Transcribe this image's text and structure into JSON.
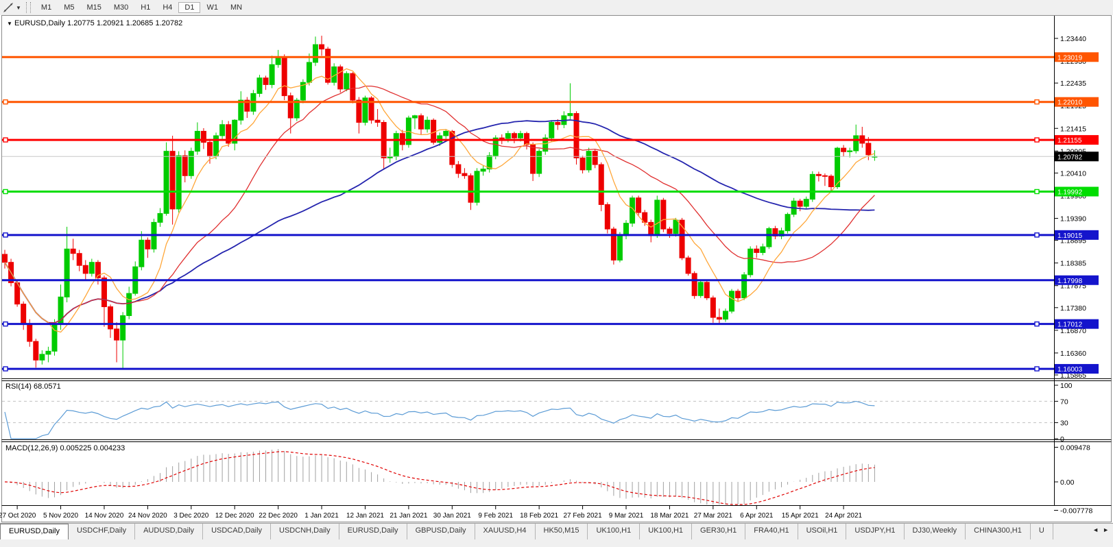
{
  "toolbar": {
    "timeframes": [
      "M1",
      "M5",
      "M15",
      "M30",
      "H1",
      "H4",
      "D1",
      "W1",
      "MN"
    ],
    "selected_timeframe": "D1"
  },
  "chart": {
    "title": {
      "dropdown_icon": "▼",
      "symbol": "EURUSD,Daily",
      "ohlc": "1.20775 1.20921 1.20685 1.20782"
    },
    "price_axis_ticks": [
      "1.23440",
      "1.22930",
      "1.22435",
      "1.21925",
      "1.21415",
      "1.20905",
      "1.20410",
      "1.19900",
      "1.19390",
      "1.18895",
      "1.18385",
      "1.17875",
      "1.17380",
      "1.16870",
      "1.16360",
      "1.15865"
    ],
    "hlines": [
      {
        "label": "1.23019",
        "price": 1.23019,
        "color": "#FF5500",
        "handles": false
      },
      {
        "label": "1.22010",
        "price": 1.2201,
        "color": "#FF5500",
        "handles": true
      },
      {
        "label": "1.21155",
        "price": 1.21155,
        "color": "#FF0000",
        "handles": true
      },
      {
        "label": "1.19992",
        "price": 1.19992,
        "color": "#00DD00",
        "handles": true
      },
      {
        "label": "1.19015",
        "price": 1.19015,
        "color": "#1414CC",
        "handles": true
      },
      {
        "label": "1.17998",
        "price": 1.17998,
        "color": "#1414CC",
        "handles": false
      },
      {
        "label": "1.17012",
        "price": 1.17012,
        "color": "#1414CC",
        "handles": true
      },
      {
        "label": "1.16003",
        "price": 1.16003,
        "color": "#1414CC",
        "handles": true
      }
    ],
    "current_price": {
      "label": "1.20782",
      "price": 1.20782
    }
  },
  "chart_data": {
    "type": "candlestick-ohlc",
    "symbol": "EURUSD",
    "period": "Daily",
    "title": "EURUSD,Daily 1.20775 1.20921 1.20685 1.20782",
    "x_date_labels": [
      "27 Oct 2020",
      "5 Nov 2020",
      "14 Nov 2020",
      "24 Nov 2020",
      "3 Dec 2020",
      "12 Dec 2020",
      "22 Dec 2020",
      "1 Jan 2021",
      "12 Jan 2021",
      "21 Jan 2021",
      "30 Jan 2021",
      "9 Feb 2021",
      "18 Feb 2021",
      "27 Feb 2021",
      "9 Mar 2021",
      "18 Mar 2021",
      "27 Mar 2021",
      "6 Apr 2021",
      "15 Apr 2021",
      "24 Apr 2021"
    ],
    "y_range_hint": [
      1.158,
      1.2385
    ],
    "candles": [
      [
        1.1858,
        1.1868,
        1.1826,
        1.184
      ],
      [
        1.184,
        1.1848,
        1.1786,
        1.1794
      ],
      [
        1.1794,
        1.18,
        1.174,
        1.1746
      ],
      [
        1.1746,
        1.1752,
        1.1688,
        1.17
      ],
      [
        1.17,
        1.1712,
        1.165,
        1.1662
      ],
      [
        1.1662,
        1.1668,
        1.1603,
        1.162
      ],
      [
        1.162,
        1.1642,
        1.161,
        1.1633
      ],
      [
        1.1633,
        1.165,
        1.1615,
        1.164
      ],
      [
        1.164,
        1.1712,
        1.163,
        1.17
      ],
      [
        1.17,
        1.179,
        1.1688,
        1.1762
      ],
      [
        1.1762,
        1.192,
        1.175,
        1.187
      ],
      [
        1.187,
        1.1893,
        1.1845,
        1.186
      ],
      [
        1.186,
        1.1868,
        1.182,
        1.1833
      ],
      [
        1.1833,
        1.1845,
        1.18,
        1.1815
      ],
      [
        1.1815,
        1.1848,
        1.1808,
        1.184
      ],
      [
        1.184,
        1.1845,
        1.179,
        1.1805
      ],
      [
        1.1805,
        1.181,
        1.1695,
        1.174
      ],
      [
        1.174,
        1.1745,
        1.167,
        1.169
      ],
      [
        1.169,
        1.1705,
        1.1615,
        1.1665
      ],
      [
        1.1665,
        1.1728,
        1.16,
        1.172
      ],
      [
        1.172,
        1.1785,
        1.1712,
        1.177
      ],
      [
        1.177,
        1.1842,
        1.1765,
        1.183
      ],
      [
        1.183,
        1.191,
        1.1822,
        1.189
      ],
      [
        1.189,
        1.1896,
        1.185,
        1.187
      ],
      [
        1.187,
        1.1938,
        1.1862,
        1.193
      ],
      [
        1.193,
        1.1962,
        1.192,
        1.195
      ],
      [
        1.195,
        1.211,
        1.1945,
        1.209
      ],
      [
        1.209,
        1.2125,
        1.1925,
        1.196
      ],
      [
        1.196,
        1.209,
        1.1952,
        1.208
      ],
      [
        1.208,
        1.2092,
        1.202,
        1.2035
      ],
      [
        1.2035,
        1.2098,
        1.2028,
        1.209
      ],
      [
        1.209,
        1.2155,
        1.2082,
        1.2135
      ],
      [
        1.2135,
        1.2142,
        1.2095,
        1.211
      ],
      [
        1.211,
        1.2118,
        1.2062,
        1.208
      ],
      [
        1.208,
        1.2132,
        1.2072,
        1.2125
      ],
      [
        1.2125,
        1.216,
        1.2118,
        1.215
      ],
      [
        1.215,
        1.2158,
        1.21,
        1.2108
      ],
      [
        1.2108,
        1.2162,
        1.2092,
        1.216
      ],
      [
        1.216,
        1.2225,
        1.215,
        1.2205
      ],
      [
        1.2205,
        1.2212,
        1.2165,
        1.218
      ],
      [
        1.218,
        1.2228,
        1.2172,
        1.222
      ],
      [
        1.222,
        1.2262,
        1.2212,
        1.2255
      ],
      [
        1.2255,
        1.226,
        1.2228,
        1.224
      ],
      [
        1.224,
        1.2305,
        1.2232,
        1.2285
      ],
      [
        1.2285,
        1.2318,
        1.2278,
        1.23
      ],
      [
        1.23,
        1.2308,
        1.2205,
        1.2215
      ],
      [
        1.2215,
        1.2222,
        1.213,
        1.2165
      ],
      [
        1.2165,
        1.221,
        1.2158,
        1.2205
      ],
      [
        1.2205,
        1.2252,
        1.2198,
        1.2245
      ],
      [
        1.2245,
        1.231,
        1.2238,
        1.229
      ],
      [
        1.229,
        1.2348,
        1.2282,
        1.233
      ],
      [
        1.233,
        1.235,
        1.2305,
        1.232
      ],
      [
        1.232,
        1.2325,
        1.224,
        1.2245
      ],
      [
        1.2245,
        1.2288,
        1.2238,
        1.228
      ],
      [
        1.228,
        1.2285,
        1.2222,
        1.223
      ],
      [
        1.223,
        1.227,
        1.2225,
        1.2265
      ],
      [
        1.2265,
        1.2268,
        1.2198,
        1.2205
      ],
      [
        1.2205,
        1.2212,
        1.213,
        1.2155
      ],
      [
        1.2155,
        1.2215,
        1.2148,
        1.221
      ],
      [
        1.221,
        1.2214,
        1.2152,
        1.216
      ],
      [
        1.216,
        1.2185,
        1.2145,
        1.2155
      ],
      [
        1.2155,
        1.216,
        1.205,
        1.2075
      ],
      [
        1.2075,
        1.2098,
        1.2064,
        1.2078
      ],
      [
        1.2078,
        1.2136,
        1.207,
        1.213
      ],
      [
        1.213,
        1.2138,
        1.2092,
        1.2105
      ],
      [
        1.2105,
        1.217,
        1.2098,
        1.2165
      ],
      [
        1.2165,
        1.2172,
        1.214,
        1.217
      ],
      [
        1.217,
        1.2175,
        1.2128,
        1.214
      ],
      [
        1.214,
        1.2168,
        1.2132,
        1.216
      ],
      [
        1.216,
        1.2164,
        1.2105,
        1.211
      ],
      [
        1.211,
        1.2132,
        1.2102,
        1.2125
      ],
      [
        1.2125,
        1.214,
        1.2118,
        1.2135
      ],
      [
        1.2135,
        1.2138,
        1.2052,
        1.206
      ],
      [
        1.206,
        1.2068,
        1.203,
        1.204
      ],
      [
        1.204,
        1.2052,
        1.2028,
        1.2035
      ],
      [
        1.2035,
        1.204,
        1.1958,
        1.1975
      ],
      [
        1.1975,
        1.2052,
        1.1968,
        1.2045
      ],
      [
        1.2045,
        1.2058,
        1.2035,
        1.205
      ],
      [
        1.205,
        1.2088,
        1.2042,
        1.208
      ],
      [
        1.208,
        1.2126,
        1.2072,
        1.212
      ],
      [
        1.212,
        1.2128,
        1.2106,
        1.2119
      ],
      [
        1.2119,
        1.2136,
        1.211,
        1.213
      ],
      [
        1.213,
        1.2134,
        1.2108,
        1.212
      ],
      [
        1.212,
        1.2136,
        1.2112,
        1.213
      ],
      [
        1.213,
        1.2134,
        1.2094,
        1.2105
      ],
      [
        1.2105,
        1.211,
        1.2023,
        1.204
      ],
      [
        1.204,
        1.2095,
        1.2032,
        1.209
      ],
      [
        1.209,
        1.2128,
        1.2082,
        1.212
      ],
      [
        1.212,
        1.216,
        1.2112,
        1.2155
      ],
      [
        1.2155,
        1.2162,
        1.2138,
        1.215
      ],
      [
        1.215,
        1.218,
        1.2142,
        1.217
      ],
      [
        1.217,
        1.2243,
        1.2162,
        1.2175
      ],
      [
        1.2175,
        1.218,
        1.206,
        1.2075
      ],
      [
        1.2075,
        1.208,
        1.204,
        1.2048
      ],
      [
        1.2048,
        1.2098,
        1.2042,
        1.209
      ],
      [
        1.209,
        1.2094,
        1.2052,
        1.206
      ],
      [
        1.206,
        1.2065,
        1.1955,
        1.197
      ],
      [
        1.197,
        1.1975,
        1.1905,
        1.1915
      ],
      [
        1.1915,
        1.192,
        1.1835,
        1.1845
      ],
      [
        1.1845,
        1.1908,
        1.184,
        1.19
      ],
      [
        1.19,
        1.1935,
        1.1892,
        1.1928
      ],
      [
        1.1928,
        1.199,
        1.192,
        1.1985
      ],
      [
        1.1985,
        1.199,
        1.1945,
        1.1952
      ],
      [
        1.1952,
        1.1958,
        1.1922,
        1.193
      ],
      [
        1.193,
        1.1936,
        1.1885,
        1.19
      ],
      [
        1.19,
        1.199,
        1.1895,
        1.198
      ],
      [
        1.198,
        1.1985,
        1.1908,
        1.1915
      ],
      [
        1.1915,
        1.192,
        1.1895,
        1.1905
      ],
      [
        1.1905,
        1.194,
        1.1898,
        1.1935
      ],
      [
        1.1935,
        1.194,
        1.1845,
        1.185
      ],
      [
        1.185,
        1.1855,
        1.181,
        1.1815
      ],
      [
        1.1815,
        1.182,
        1.1758,
        1.1765
      ],
      [
        1.1765,
        1.18,
        1.176,
        1.1795
      ],
      [
        1.1795,
        1.18,
        1.1755,
        1.176
      ],
      [
        1.176,
        1.1765,
        1.1704,
        1.1716
      ],
      [
        1.1716,
        1.1736,
        1.1702,
        1.1712
      ],
      [
        1.1712,
        1.1736,
        1.1706,
        1.173
      ],
      [
        1.173,
        1.178,
        1.1725,
        1.1775
      ],
      [
        1.1775,
        1.178,
        1.1752,
        1.176
      ],
      [
        1.176,
        1.1818,
        1.1755,
        1.1812
      ],
      [
        1.1812,
        1.1876,
        1.1806,
        1.187
      ],
      [
        1.187,
        1.1878,
        1.185,
        1.1862
      ],
      [
        1.1862,
        1.1882,
        1.1856,
        1.1875
      ],
      [
        1.1875,
        1.192,
        1.187,
        1.1916
      ],
      [
        1.1916,
        1.1922,
        1.1892,
        1.1899
      ],
      [
        1.1899,
        1.1918,
        1.1892,
        1.1911
      ],
      [
        1.1911,
        1.1952,
        1.1905,
        1.1948
      ],
      [
        1.1948,
        1.1985,
        1.1942,
        1.1978
      ],
      [
        1.1978,
        1.1983,
        1.1955,
        1.1966
      ],
      [
        1.1966,
        1.1988,
        1.196,
        1.1982
      ],
      [
        1.1982,
        1.2045,
        1.1976,
        1.2038
      ],
      [
        1.2038,
        1.2044,
        1.2022,
        1.2035
      ],
      [
        1.2035,
        1.204,
        1.2012,
        1.2034
      ],
      [
        1.2034,
        1.2038,
        1.2,
        1.201
      ],
      [
        1.201,
        1.21,
        1.2005,
        1.2097
      ],
      [
        1.2097,
        1.2104,
        1.2078,
        1.2089
      ],
      [
        1.2089,
        1.2098,
        1.2076,
        1.2091
      ],
      [
        1.2091,
        1.215,
        1.2085,
        1.2125
      ],
      [
        1.2125,
        1.2145,
        1.2098,
        1.2108
      ],
      [
        1.2108,
        1.2122,
        1.207,
        1.2082
      ],
      [
        1.20775,
        1.20921,
        1.20685,
        1.20782
      ]
    ]
  },
  "rsi_panel": {
    "label": "RSI(14) 68.0571",
    "period": 14,
    "value": 68.0571,
    "ticks": [
      {
        "v": 100,
        "label": "100"
      },
      {
        "v": 70,
        "label": "70"
      },
      {
        "v": 30,
        "label": "30"
      },
      {
        "v": 0,
        "label": "0"
      }
    ]
  },
  "macd_panel": {
    "label": "MACD(12,26,9) 0.005225 0.004233",
    "fast": 12,
    "slow": 26,
    "signal": 9,
    "macd_value": 0.005225,
    "signal_value": 0.004233,
    "ticks": [
      {
        "v": 0.009478,
        "label": "0.009478"
      },
      {
        "v": 0,
        "label": "0.00"
      },
      {
        "v": -0.007778,
        "label": "-0.007778"
      }
    ]
  },
  "tabs": {
    "items": [
      "EURUSD,Daily",
      "USDCHF,Daily",
      "AUDUSD,Daily",
      "USDCAD,Daily",
      "USDCNH,Daily",
      "EURUSD,Daily",
      "GBPUSD,Daily",
      "XAUUSD,H4",
      "HK50,M15",
      "UK100,H1",
      "UK100,H1",
      "GER30,H1",
      "FRA40,H1",
      "USOil,H1",
      "USDJPY,H1",
      "DJ30,Weekly",
      "CHINA300,H1",
      "U"
    ],
    "active_index": 0,
    "scroll_left_icon": "◄",
    "scroll_right_icon": "►"
  },
  "colors": {
    "bull": "#00CB00",
    "bear": "#ED0000",
    "ma_fast": "#FFA638",
    "ma_mid": "#E03030",
    "ma_slow": "#2424AE",
    "rsi_line": "#5B9BD5",
    "rsi_levels": "#c0c0c0",
    "macd_hist": "#A0A0A0",
    "macd_signal": "#E00000",
    "price_line": "#C8C8C8",
    "current_badge_bg": "#000000",
    "badge_text": "#FFFFFF"
  }
}
